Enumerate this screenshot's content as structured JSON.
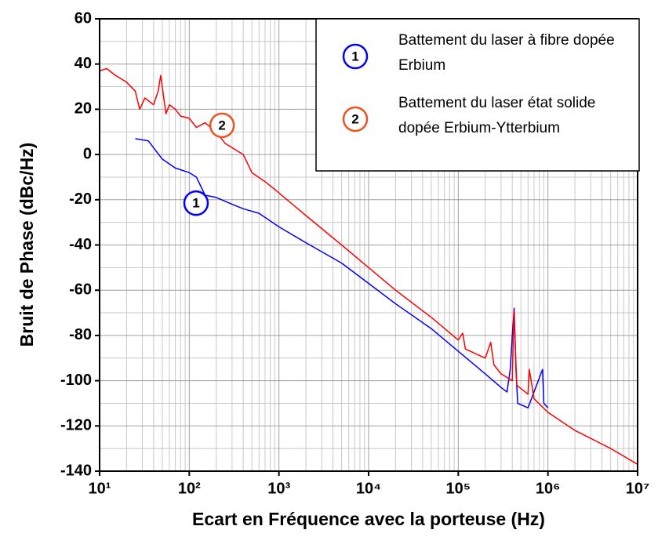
{
  "chart_data": {
    "type": "line",
    "xlabel": "Ecart en Fréquence avec la porteuse (Hz)",
    "ylabel": "Bruit de Phase (dBc/Hz)",
    "xscale": "log",
    "xlim": [
      10,
      10000000
    ],
    "ylim": [
      -140,
      60
    ],
    "xticks": [
      {
        "value": 10,
        "label": "10¹"
      },
      {
        "value": 100,
        "label": "10²"
      },
      {
        "value": 1000,
        "label": "10³"
      },
      {
        "value": 10000,
        "label": "10⁴"
      },
      {
        "value": 100000,
        "label": "10⁵"
      },
      {
        "value": 1000000,
        "label": "10⁶"
      },
      {
        "value": 10000000,
        "label": "10⁷"
      }
    ],
    "yticks": [
      60,
      40,
      20,
      0,
      -20,
      -40,
      -60,
      -80,
      -100,
      -120,
      -140
    ],
    "grid": true,
    "minor_grid": true,
    "legend": "upper right",
    "series": [
      {
        "name": "Battement du laser à fibre dopée Erbium",
        "label": "1",
        "label_color": "#0000ff",
        "color": "#0000ff",
        "x": [
          25,
          35,
          40,
          50,
          70,
          100,
          120,
          150,
          200,
          300,
          400,
          600,
          1000,
          2000,
          5000,
          10000,
          20000,
          50000,
          100000,
          200000,
          300000,
          350000,
          380000,
          400000,
          420000,
          440000,
          460000,
          600000,
          870000,
          900000,
          1000000
        ],
        "values": [
          7,
          6,
          3,
          -2,
          -6,
          -8,
          -10,
          -18,
          -19,
          -22,
          -24,
          -26,
          -32,
          -39,
          -48,
          -57,
          -66,
          -77,
          -87,
          -97,
          -103,
          -105,
          -95,
          -80,
          -68,
          -95,
          -110,
          -112,
          -95,
          -110,
          -112
        ]
      },
      {
        "name": "Battement du laser état solide dopée Erbium-Ytterbium",
        "label": "2",
        "label_color": "#f05020",
        "color": "#ff0000",
        "x": [
          10,
          12,
          15,
          20,
          25,
          28,
          32,
          40,
          45,
          48,
          55,
          60,
          70,
          80,
          100,
          120,
          150,
          200,
          250,
          300,
          400,
          500,
          700,
          1000,
          2000,
          5000,
          10000,
          20000,
          50000,
          100000,
          112000,
          120000,
          200000,
          230000,
          250000,
          300000,
          400000,
          417000,
          450000,
          600000,
          620000,
          700000,
          1000000,
          2000000,
          5000000,
          10000000
        ],
        "values": [
          37,
          38,
          35,
          32,
          28,
          20,
          25,
          22,
          28,
          35,
          18,
          22,
          20,
          17,
          16,
          12,
          14,
          10,
          5,
          3,
          0,
          -8,
          -12,
          -17,
          -27,
          -40,
          -50,
          -60,
          -72,
          -82,
          -79,
          -86,
          -90,
          -83,
          -93,
          -97,
          -100,
          -69,
          -102,
          -106,
          -95,
          -108,
          -114,
          -122,
          -130,
          -137
        ]
      }
    ],
    "annotations": [
      {
        "text": "1",
        "x": 119,
        "y": -21.5,
        "series": 0
      },
      {
        "text": "2",
        "x": 232,
        "y": 12.9,
        "series": 1
      }
    ]
  }
}
